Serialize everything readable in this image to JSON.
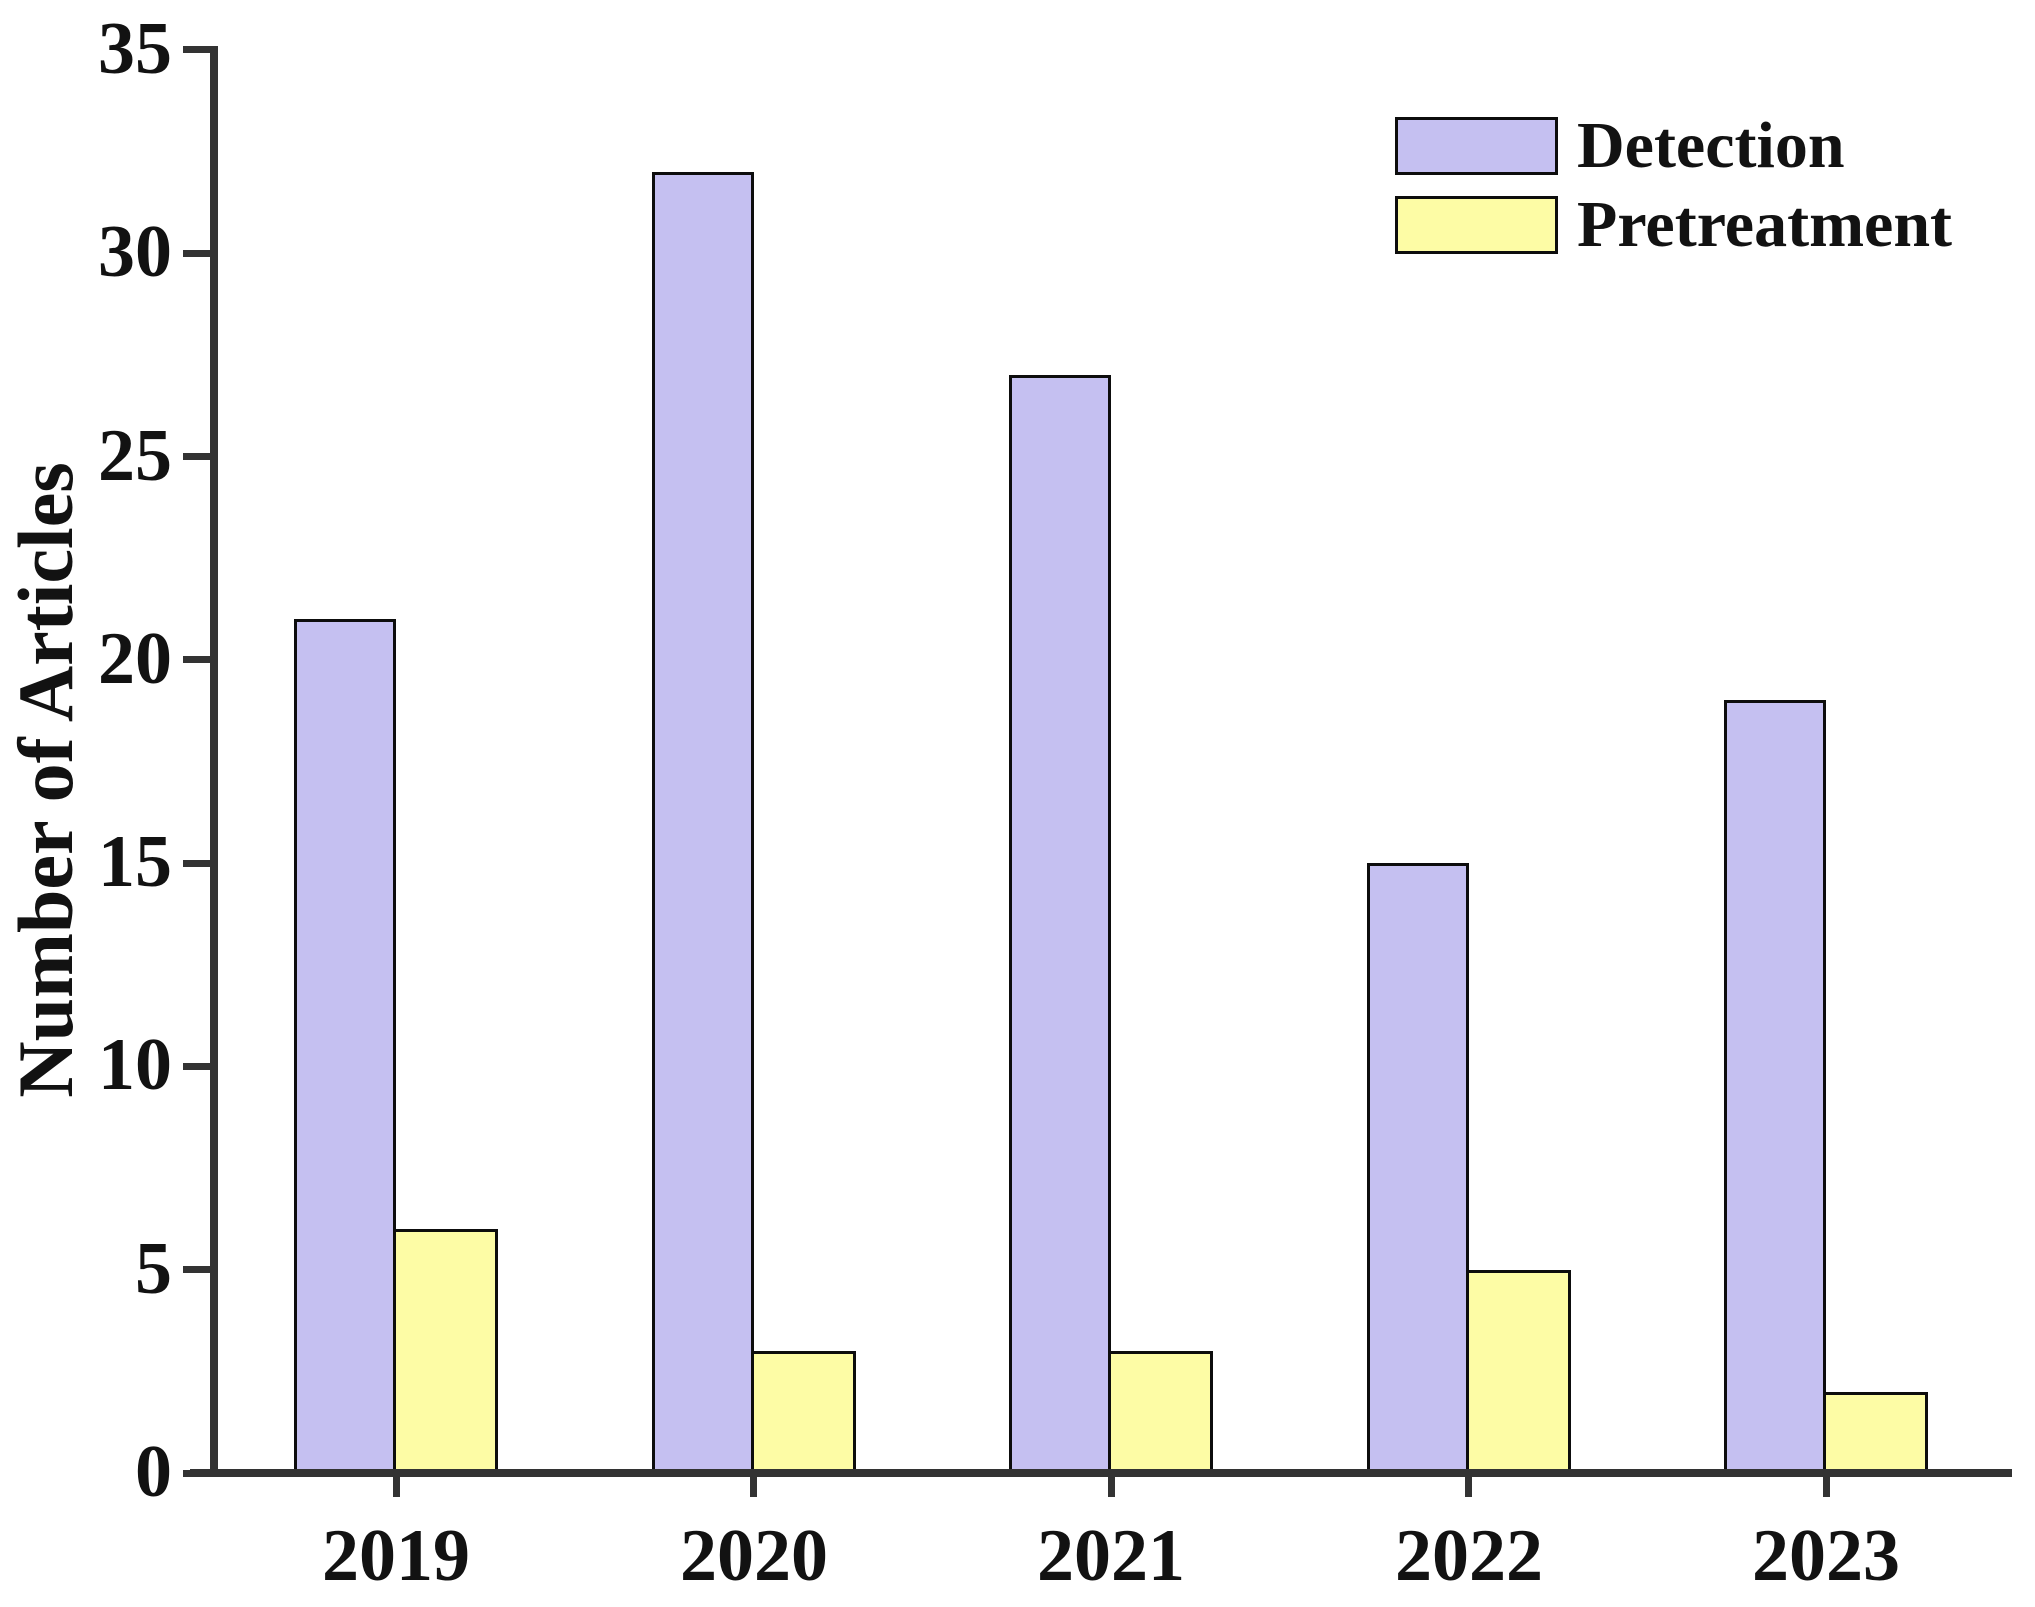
{
  "figure": {
    "background": "#ffffff"
  },
  "chart_data": {
    "type": "bar",
    "title": "",
    "xlabel": "",
    "ylabel": "Number of Articles",
    "categories": [
      "2019",
      "2020",
      "2021",
      "2022",
      "2023"
    ],
    "series": [
      {
        "name": "Detection",
        "values": [
          21,
          32,
          27,
          15,
          19
        ],
        "fill": "#C5C0F1"
      },
      {
        "name": "Pretreatment",
        "values": [
          6,
          3,
          3,
          5,
          2
        ],
        "fill": "#FDFCA5"
      }
    ],
    "ylim": [
      0,
      35
    ],
    "yticks": [
      0,
      5,
      10,
      15,
      20,
      25,
      30,
      35
    ],
    "grid": false,
    "legend_position": "top-right",
    "axis_color": "#333333",
    "bar_border_color": "#0d0d0d",
    "text_color": "#121212"
  }
}
